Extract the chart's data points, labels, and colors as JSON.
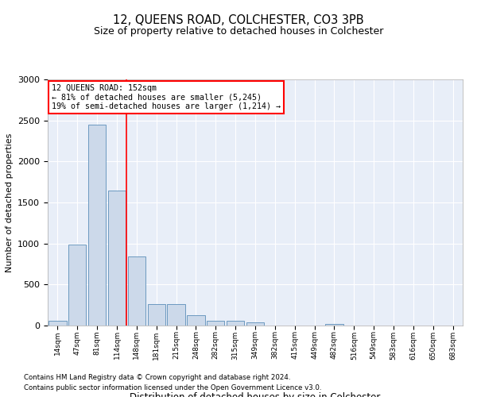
{
  "title": "12, QUEENS ROAD, COLCHESTER, CO3 3PB",
  "subtitle": "Size of property relative to detached houses in Colchester",
  "xlabel": "Distribution of detached houses by size in Colchester",
  "ylabel": "Number of detached properties",
  "bar_color": "#ccd9ea",
  "bar_edge_color": "#5b8db8",
  "background_color": "#e8eef8",
  "categories": [
    "14sqm",
    "47sqm",
    "81sqm",
    "114sqm",
    "148sqm",
    "181sqm",
    "215sqm",
    "248sqm",
    "282sqm",
    "315sqm",
    "349sqm",
    "382sqm",
    "415sqm",
    "449sqm",
    "482sqm",
    "516sqm",
    "549sqm",
    "583sqm",
    "616sqm",
    "650sqm",
    "683sqm"
  ],
  "values": [
    60,
    990,
    2450,
    1650,
    840,
    260,
    260,
    130,
    60,
    55,
    40,
    0,
    0,
    0,
    18,
    0,
    0,
    0,
    0,
    0,
    0
  ],
  "ylim": [
    0,
    3000
  ],
  "yticks": [
    0,
    500,
    1000,
    1500,
    2000,
    2500,
    3000
  ],
  "property_label": "12 QUEENS ROAD: 152sqm",
  "annotation_line1": "← 81% of detached houses are smaller (5,245)",
  "annotation_line2": "19% of semi-detached houses are larger (1,214) →",
  "vline_x": 3.5,
  "footnote1": "Contains HM Land Registry data © Crown copyright and database right 2024.",
  "footnote2": "Contains public sector information licensed under the Open Government Licence v3.0."
}
